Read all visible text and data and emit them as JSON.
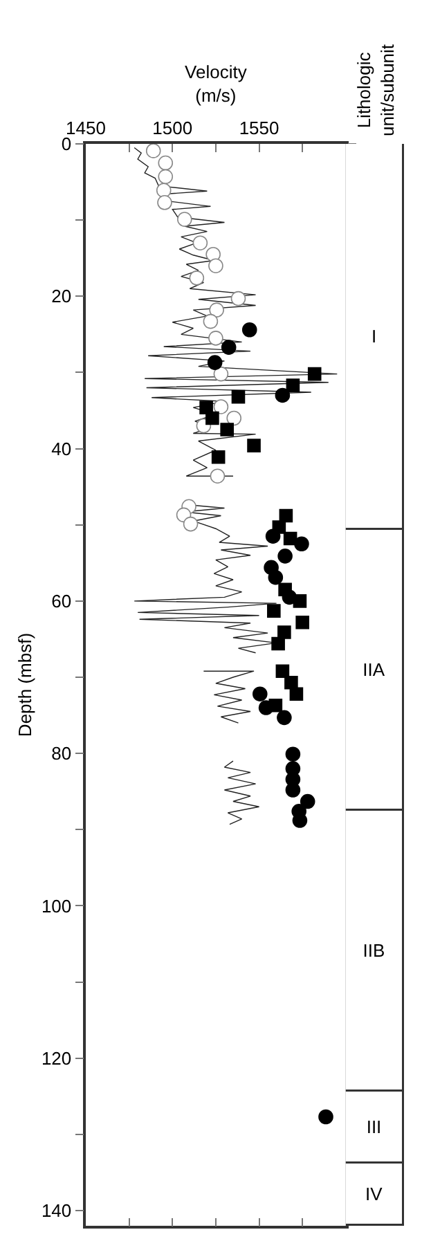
{
  "chart_data": [
    {
      "type": "scatter",
      "xlabel": "Velocity\n(m/s)",
      "ylabel": "Depth (mbsf)",
      "xlim": [
        1450,
        1600
      ],
      "xticks": [
        1450,
        {
          "value": 1475,
          "label": null
        },
        1500,
        {
          "value": 1525,
          "label": null
        },
        1550,
        {
          "value": 1575,
          "label": null
        },
        {
          "value": 1600,
          "label": null
        }
      ],
      "ylim": [
        142,
        0
      ],
      "yticks": [
        0,
        {
          "value": 10,
          "label": null
        },
        20,
        {
          "value": 30,
          "label": null
        },
        40,
        {
          "value": 50,
          "label": null
        },
        60,
        {
          "value": 70,
          "label": null
        },
        80,
        {
          "value": 90,
          "label": null
        },
        100,
        {
          "value": 110,
          "label": null
        },
        120,
        {
          "value": 130,
          "label": null
        },
        140
      ],
      "series": [
        {
          "type": "line",
          "color": "#222222",
          "marker": "none",
          "x": [
            1478,
            1482,
            1480,
            1486,
            1484,
            1490,
            1492,
            1520,
            1494,
            1497,
            1522,
            1500,
            1503,
            1530,
            1507,
            1520,
            1505,
            1514,
            1504,
            1512,
            1524,
            1508,
            1515,
            1505,
            1518,
            1510,
            1548,
            1515,
            1548,
            1512,
            1520,
            1500,
            1512,
            1505,
            1540,
            1495,
            1545,
            1486,
            1530,
            1515,
            1595,
            1484,
            1590,
            1485,
            1580,
            1488,
            1530,
            1512,
            1525,
            1513,
            1522,
            1512,
            1548,
            1515,
            1525,
            1512,
            1520,
            1508,
            1535,
            null,
            1510,
            1530,
            1507,
            1528,
            1512,
            1525,
            1533,
            1527,
            1555,
            1528,
            1545,
            1525,
            1532,
            1524,
            1535,
            1525,
            1540,
            1530,
            1478,
            1560,
            1532,
            1480,
            1550,
            1481,
            1545,
            1530,
            1555,
            1535,
            1560,
            1538,
            1548,
            null,
            1518,
            1547,
            1535,
            1525,
            1542,
            1524,
            1540,
            1526,
            1545,
            1528,
            1538,
            null,
            1535,
            1530,
            1545,
            1532,
            1548,
            1530,
            1545,
            1535,
            1550,
            1532,
            1540,
            1533
          ],
          "values": [
            0.5,
            1.2,
            2,
            3,
            3.8,
            4.5,
            5.5,
            6.2,
            6.6,
            7.5,
            8.2,
            8.6,
            9.6,
            10.3,
            10.8,
            11.5,
            12.2,
            13,
            13.8,
            14.6,
            15.3,
            15.8,
            16.6,
            17.4,
            18.2,
            19,
            19.8,
            20.4,
            21.2,
            21.8,
            22.6,
            23.4,
            24.2,
            25,
            26,
            26.6,
            27.2,
            27.8,
            28.5,
            29.2,
            30.2,
            30.8,
            31.3,
            32,
            32.6,
            33.3,
            33.8,
            34.6,
            35.5,
            36.4,
            37.2,
            38,
            38.1,
            39,
            40.2,
            41.5,
            42.5,
            43.6,
            43.6,
            null,
            47.4,
            47.8,
            48.3,
            48.8,
            49.5,
            50.5,
            51.5,
            52.3,
            52.8,
            53.3,
            54,
            54.6,
            55.5,
            56.4,
            57.2,
            58,
            58.8,
            59.5,
            60,
            60.3,
            60.8,
            61.5,
            61.9,
            62.4,
            62.9,
            63.5,
            64.2,
            64.8,
            65.5,
            66.2,
            66.8,
            null,
            69.2,
            69.2,
            70,
            70.8,
            71.5,
            72.3,
            73,
            73.8,
            74.5,
            75.2,
            76,
            null,
            81,
            81.8,
            82.5,
            83.2,
            84,
            84.8,
            85.6,
            86.3,
            87,
            87.8,
            88.6,
            89.3
          ]
        },
        {
          "color": "#ffffff",
          "marker": "circle",
          "x": [
            1489,
            1496,
            1496,
            1495,
            1495.5,
            1507,
            1516,
            1523.5,
            1525,
            1514,
            1538,
            1525.5,
            1522,
            1525,
            1528,
            1528,
            1535.5,
            1518,
            1526,
            1509.5,
            1506.5,
            1510.5
          ],
          "values": [
            0.9,
            2.5,
            4.3,
            6.1,
            7.7,
            9.9,
            13,
            14.5,
            16,
            17.6,
            20.3,
            21.8,
            23.3,
            25.5,
            30.2,
            34.5,
            36,
            37,
            43.6,
            47.6,
            48.7,
            49.9
          ]
        },
        {
          "color": "#000000",
          "marker": "circle",
          "x": [
            1544.5,
            1532.5,
            1524.5,
            1563.5,
            1558,
            1574.5,
            1565,
            1557,
            1559.5,
            null,
            1567.5,
            1550.5,
            1554,
            1564.5,
            1569.5,
            1569.5,
            1569.5,
            1569.5,
            1578,
            1573,
            1573.5,
            1588.5
          ],
          "values": [
            24.4,
            26.7,
            28.7,
            33,
            51.5,
            52.5,
            54.1,
            55.6,
            56.9,
            null,
            59.5,
            72.2,
            74,
            75.3,
            80.1,
            82,
            83.4,
            84.8,
            86.3,
            87.6,
            88.8,
            127.7
          ]
        },
        {
          "color": "#000000",
          "marker": "square",
          "x": [
            1582,
            1569.5,
            1538,
            1519.5,
            1523,
            1531.5,
            1547,
            1526.5,
            1565.5,
            1561.5,
            1568,
            1565,
            1573.5,
            1558.5,
            1575,
            1564.5,
            1561,
            1563.5,
            1568.5,
            1571.5,
            1559.5
          ],
          "values": [
            30.2,
            31.7,
            33.2,
            34.6,
            36,
            37.5,
            39.6,
            41.1,
            48.8,
            50.3,
            51.8,
            58.5,
            60,
            61.3,
            62.8,
            64.1,
            65.6,
            69.2,
            70.7,
            72.2,
            73.7
          ]
        }
      ]
    },
    {
      "type": "bar",
      "stacked": true,
      "title": "Lithologic\nunit/subunit",
      "categories": [
        null
      ],
      "ylim": [
        142,
        0
      ],
      "tick_labels": false,
      "series": [
        {
          "name": "I",
          "color": "#ffffff",
          "values": [
            50.6
          ]
        },
        {
          "name": "IIA",
          "color": "#ffffff",
          "values": [
            37.0
          ]
        },
        {
          "name": "IIB",
          "color": "#ffffff",
          "values": [
            36.8
          ]
        },
        {
          "name": "III",
          "color": "#ffffff",
          "values": [
            9.5
          ]
        },
        {
          "name": "IV",
          "color": "#ffffff",
          "values": [
            8.1
          ]
        }
      ]
    }
  ]
}
